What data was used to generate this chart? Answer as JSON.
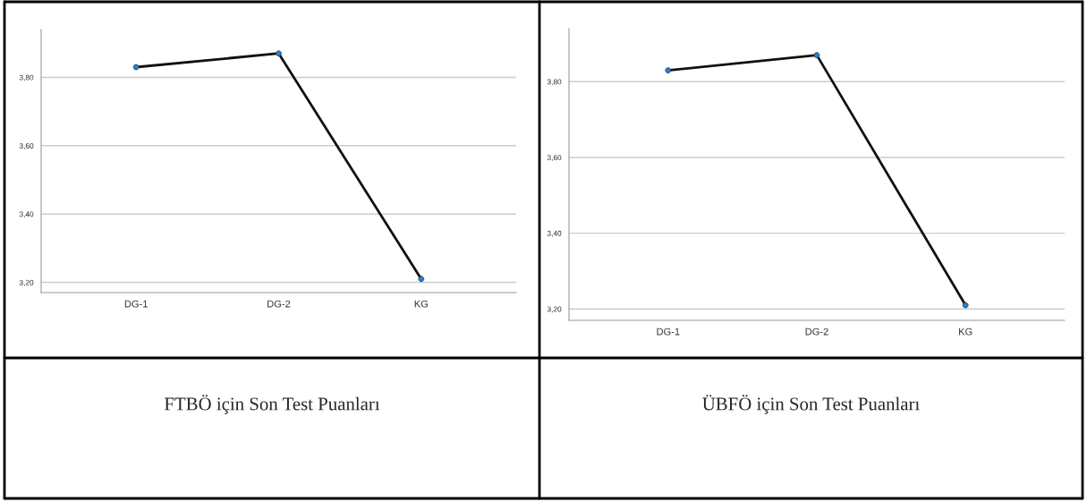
{
  "chart_data": [
    {
      "type": "line",
      "title": "FTBÖ için Son Test Puanları",
      "categories": [
        "DG-1",
        "DG-2",
        "KG"
      ],
      "series": [
        {
          "color": "#111111",
          "colors": [
            "#2f7fc1",
            "#2f7fc1",
            "#2f7fc1"
          ],
          "values": [
            3.83,
            3.87,
            3.21
          ]
        }
      ],
      "ylim": [
        3.17,
        3.94
      ],
      "yticks": [
        {
          "value": 3.2,
          "label": "3,20"
        },
        {
          "value": 3.4,
          "label": "3,40"
        },
        {
          "value": 3.6,
          "label": "3,60"
        },
        {
          "value": 3.8,
          "label": "3,80"
        }
      ],
      "grid": "y",
      "marker": "circle",
      "line_style": "solid"
    },
    {
      "type": "line",
      "title": "ÜBFÖ için Son Test Puanları",
      "categories": [
        "DG-1",
        "DG-2",
        "KG"
      ],
      "series": [
        {
          "color": "#111111",
          "colors": [
            "#2f7fc1",
            "#2f7fc1",
            "#2f7fc1"
          ],
          "values": [
            3.83,
            3.87,
            3.21
          ]
        }
      ],
      "ylim": [
        3.17,
        3.94
      ],
      "yticks": [
        {
          "value": 3.2,
          "label": "3,20"
        },
        {
          "value": 3.4,
          "label": "3,40"
        },
        {
          "value": 3.6,
          "label": "3,60"
        },
        {
          "value": 3.8,
          "label": "3,80"
        }
      ],
      "grid": "y",
      "marker": "circle",
      "line_style": "solid"
    }
  ]
}
